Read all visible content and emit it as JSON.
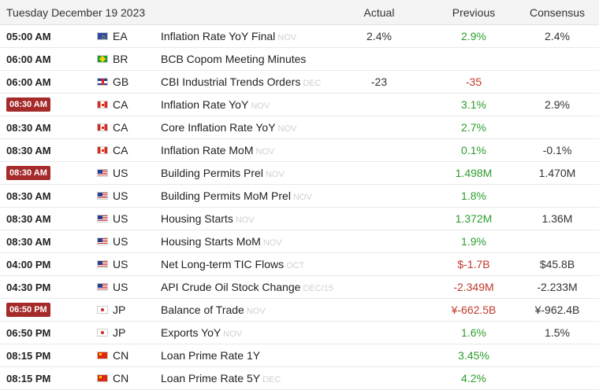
{
  "header": {
    "date": "Tuesday December 19 2023",
    "actual": "Actual",
    "previous": "Previous",
    "consensus": "Consensus"
  },
  "rows": [
    {
      "time": "05:00 AM",
      "hl": false,
      "flag": "ea",
      "country": "EA",
      "event": "Inflation Rate YoY Final",
      "ref": "NOV",
      "actual": "2.4%",
      "previous": "2.9%",
      "previous_color": "pos",
      "consensus": "2.4%"
    },
    {
      "time": "06:00 AM",
      "hl": false,
      "flag": "br",
      "country": "BR",
      "event": "BCB Copom Meeting Minutes",
      "ref": "",
      "actual": "",
      "previous": "",
      "previous_color": "neu",
      "consensus": ""
    },
    {
      "time": "06:00 AM",
      "hl": false,
      "flag": "gb",
      "country": "GB",
      "event": "CBI Industrial Trends Orders",
      "ref": "DEC",
      "actual": "-23",
      "previous": "-35",
      "previous_color": "neg",
      "consensus": ""
    },
    {
      "time": "08:30 AM",
      "hl": true,
      "flag": "ca",
      "country": "CA",
      "event": "Inflation Rate YoY",
      "ref": "NOV",
      "actual": "",
      "previous": "3.1%",
      "previous_color": "pos",
      "consensus": "2.9%"
    },
    {
      "time": "08:30 AM",
      "hl": false,
      "flag": "ca",
      "country": "CA",
      "event": "Core Inflation Rate YoY",
      "ref": "NOV",
      "actual": "",
      "previous": "2.7%",
      "previous_color": "pos",
      "consensus": ""
    },
    {
      "time": "08:30 AM",
      "hl": false,
      "flag": "ca",
      "country": "CA",
      "event": "Inflation Rate MoM",
      "ref": "NOV",
      "actual": "",
      "previous": "0.1%",
      "previous_color": "pos",
      "consensus": "-0.1%"
    },
    {
      "time": "08:30 AM",
      "hl": true,
      "flag": "us",
      "country": "US",
      "event": "Building Permits Prel",
      "ref": "NOV",
      "actual": "",
      "previous": "1.498M",
      "previous_color": "pos",
      "consensus": "1.470M"
    },
    {
      "time": "08:30 AM",
      "hl": false,
      "flag": "us",
      "country": "US",
      "event": "Building Permits MoM Prel",
      "ref": "NOV",
      "actual": "",
      "previous": "1.8%",
      "previous_color": "pos",
      "consensus": ""
    },
    {
      "time": "08:30 AM",
      "hl": false,
      "flag": "us",
      "country": "US",
      "event": "Housing Starts",
      "ref": "NOV",
      "actual": "",
      "previous": "1.372M",
      "previous_color": "pos",
      "consensus": "1.36M"
    },
    {
      "time": "08:30 AM",
      "hl": false,
      "flag": "us",
      "country": "US",
      "event": "Housing Starts MoM",
      "ref": "NOV",
      "actual": "",
      "previous": "1.9%",
      "previous_color": "pos",
      "consensus": ""
    },
    {
      "time": "04:00 PM",
      "hl": false,
      "flag": "us",
      "country": "US",
      "event": "Net Long-term TIC Flows",
      "ref": "OCT",
      "actual": "",
      "previous": "$-1.7B",
      "previous_color": "neg",
      "consensus": "$45.8B"
    },
    {
      "time": "04:30 PM",
      "hl": false,
      "flag": "us",
      "country": "US",
      "event": "API Crude Oil Stock Change",
      "ref": "DEC/15",
      "actual": "",
      "previous": "-2.349M",
      "previous_color": "neg",
      "consensus": "-2.233M"
    },
    {
      "time": "06:50 PM",
      "hl": true,
      "flag": "jp",
      "country": "JP",
      "event": "Balance of Trade",
      "ref": "NOV",
      "actual": "",
      "previous": "¥-662.5B",
      "previous_color": "neg",
      "consensus": "¥-962.4B"
    },
    {
      "time": "06:50 PM",
      "hl": false,
      "flag": "jp",
      "country": "JP",
      "event": "Exports YoY",
      "ref": "NOV",
      "actual": "",
      "previous": "1.6%",
      "previous_color": "pos",
      "consensus": "1.5%"
    },
    {
      "time": "08:15 PM",
      "hl": false,
      "flag": "cn",
      "country": "CN",
      "event": "Loan Prime Rate 1Y",
      "ref": "",
      "actual": "",
      "previous": "3.45%",
      "previous_color": "pos",
      "consensus": ""
    },
    {
      "time": "08:15 PM",
      "hl": false,
      "flag": "cn",
      "country": "CN",
      "event": "Loan Prime Rate 5Y",
      "ref": "DEC",
      "actual": "",
      "previous": "4.2%",
      "previous_color": "pos",
      "consensus": ""
    }
  ],
  "colors": {
    "positive": "#2d9d2d",
    "negative": "#c0392b",
    "highlight": "#a52a2a"
  }
}
